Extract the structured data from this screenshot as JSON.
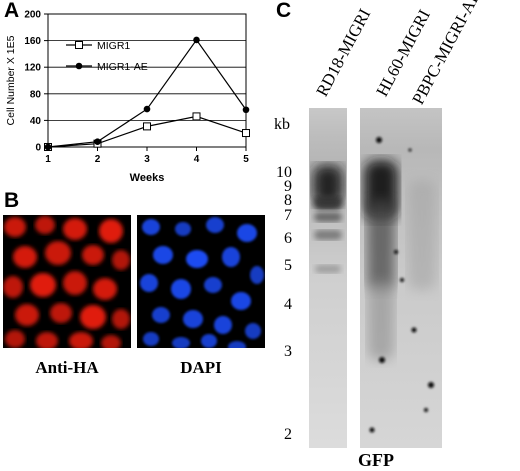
{
  "panel_a": {
    "letter": "A",
    "chart_data": {
      "type": "line",
      "x": [
        1,
        2,
        3,
        4,
        5
      ],
      "series": [
        {
          "name": "MIGR1",
          "values": [
            0,
            5,
            31,
            46,
            21
          ],
          "marker": "open-square"
        },
        {
          "name": "MIGR1-AE",
          "values": [
            0,
            8,
            57,
            161,
            56
          ],
          "marker": "filled-circle"
        }
      ],
      "xlabel": "Weeks",
      "ylabel": "Cell Number X 1E5",
      "xticks": [
        "1",
        "2",
        "3",
        "4",
        "5"
      ],
      "yticks": [
        "0",
        "40",
        "80",
        "120",
        "160",
        "200"
      ],
      "xlim": [
        1,
        5
      ],
      "ylim": [
        0,
        200
      ],
      "grid": "horizontal",
      "legend_position": "top-left"
    }
  },
  "panel_b": {
    "letter": "B",
    "images": [
      {
        "caption": "Anti-HA",
        "stain_color": "#e01a0c"
      },
      {
        "caption": "DAPI",
        "stain_color": "#1f4cf2"
      }
    ]
  },
  "panel_c": {
    "letter": "C",
    "lanes": [
      "RD18-MIGRI",
      "HL60-MIGRI",
      "PBPC-MIGRI-AE"
    ],
    "kb_label": "kb",
    "kb_markers": [
      "10",
      "9",
      "8",
      "7",
      "6",
      "5",
      "4",
      "3",
      "2"
    ],
    "caption": "GFP"
  }
}
